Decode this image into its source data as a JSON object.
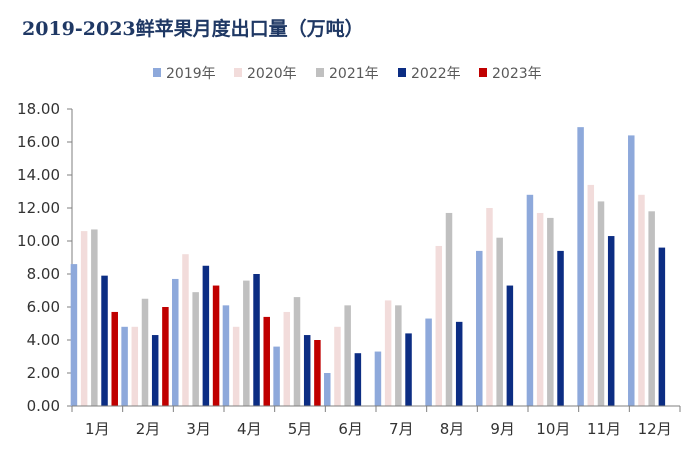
{
  "chart_data": {
    "type": "bar",
    "title": "2019-2023鲜苹果月度出口量（万吨）",
    "xlabel": "",
    "ylabel": "",
    "ylim": [
      0,
      18
    ],
    "yticks": [
      "0.00",
      "2.00",
      "4.00",
      "6.00",
      "8.00",
      "10.00",
      "12.00",
      "14.00",
      "16.00",
      "18.00"
    ],
    "grid": false,
    "legend_position": "top-center",
    "categories": [
      "1月",
      "2月",
      "3月",
      "4月",
      "5月",
      "6月",
      "7月",
      "8月",
      "9月",
      "10月",
      "11月",
      "12月"
    ],
    "series": [
      {
        "name": "2019年",
        "color": "#8ea9db",
        "values": [
          8.6,
          4.8,
          7.7,
          6.1,
          3.6,
          2.0,
          3.3,
          5.3,
          9.4,
          12.8,
          16.9,
          16.4
        ]
      },
      {
        "name": "2020年",
        "color": "#f2dcdb",
        "values": [
          10.6,
          4.8,
          9.2,
          4.8,
          5.7,
          4.8,
          6.4,
          9.7,
          12.0,
          11.7,
          13.4,
          12.8
        ]
      },
      {
        "name": "2021年",
        "color": "#c0c0c0",
        "values": [
          10.7,
          6.5,
          6.9,
          7.6,
          6.6,
          6.1,
          6.1,
          11.7,
          10.2,
          11.4,
          12.4,
          11.8
        ]
      },
      {
        "name": "2022年",
        "color": "#0c2d83",
        "values": [
          7.9,
          4.3,
          8.5,
          8.0,
          4.3,
          3.2,
          4.4,
          5.1,
          7.3,
          9.4,
          10.3,
          9.6
        ]
      },
      {
        "name": "2023年",
        "color": "#c00000",
        "values": [
          5.7,
          6.0,
          7.3,
          5.4,
          4.0,
          null,
          null,
          null,
          null,
          null,
          null,
          null
        ]
      }
    ]
  }
}
